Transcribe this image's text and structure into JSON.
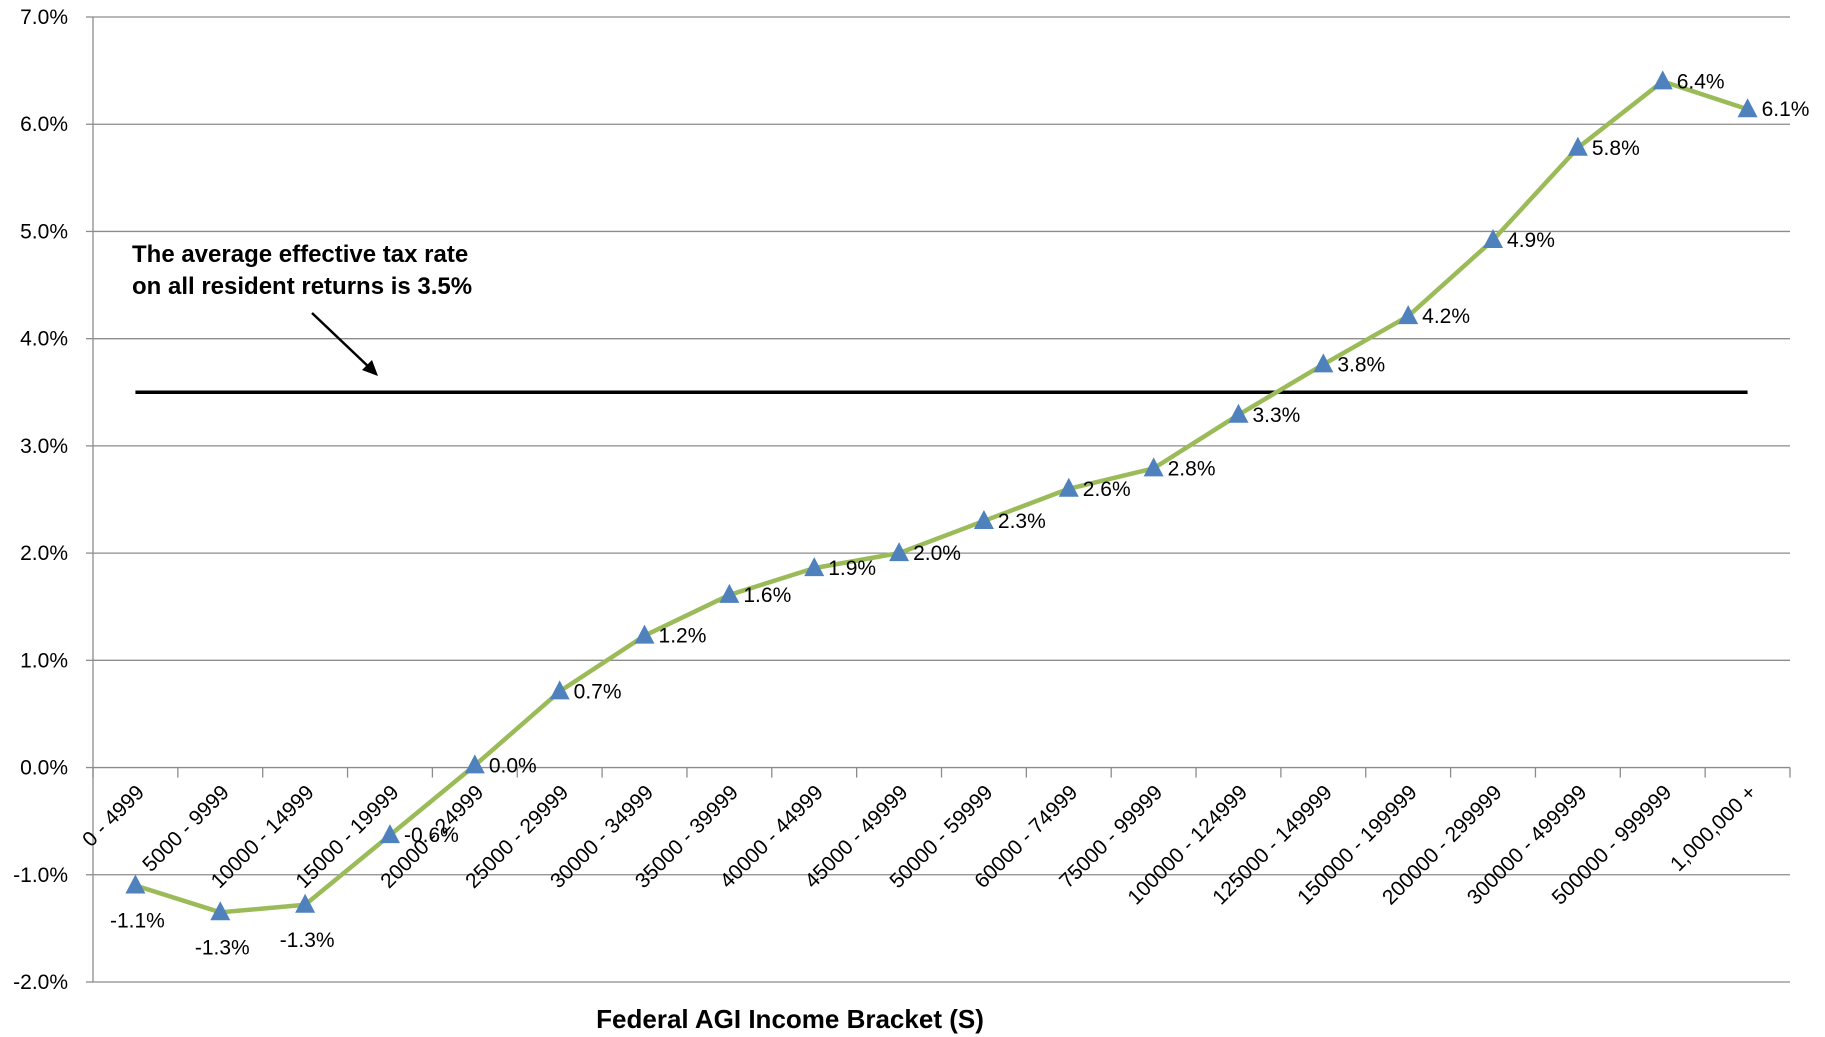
{
  "chart_data": {
    "type": "line",
    "xlabel": "Federal AGI Income Bracket (S)",
    "ylabel": "",
    "ylim": [
      -2.0,
      7.0
    ],
    "y_tick_step": 1.0,
    "y_tick_labels": [
      "-2.0%",
      "-1.0%",
      "0.0%",
      "1.0%",
      "2.0%",
      "3.0%",
      "4.0%",
      "5.0%",
      "6.0%",
      "7.0%"
    ],
    "grid": true,
    "categories": [
      "0 - 4999",
      "5000 - 9999",
      "10000 - 14999",
      "15000 - 19999",
      "20000 - 24999",
      "25000 - 29999",
      "30000 - 34999",
      "35000 - 39999",
      "40000 - 44999",
      "45000 - 49999",
      "50000 - 59999",
      "60000 - 74999",
      "75000 - 99999",
      "100000 - 124999",
      "125000 - 149999",
      "150000 - 199999",
      "200000 - 299999",
      "300000 - 499999",
      "500000 - 999999",
      "1,000,000 +"
    ],
    "series": [
      {
        "name": "",
        "values": [
          -1.1,
          -1.35,
          -1.28,
          -0.63,
          0.02,
          0.71,
          1.23,
          1.61,
          1.86,
          2.0,
          2.3,
          2.6,
          2.79,
          3.29,
          3.76,
          4.21,
          4.92,
          5.78,
          6.4,
          6.14
        ],
        "data_labels": [
          "-1.1%",
          "-1.3%",
          "-1.3%",
          "-0.6%",
          "0.0%",
          "0.7%",
          "1.2%",
          "1.6%",
          "1.9%",
          "2.0%",
          "2.3%",
          "2.6%",
          "2.8%",
          "3.3%",
          "3.8%",
          "4.2%",
          "4.9%",
          "5.8%",
          "6.4%",
          "6.1%"
        ],
        "line_color": "#9BBB59",
        "marker": "triangle",
        "marker_color": "#4F81BD"
      }
    ],
    "reference_line": {
      "value": 3.5,
      "color": "#000000"
    },
    "annotation": {
      "line1": "The average effective tax rate",
      "line2": "on all resident returns is 3.5%"
    }
  }
}
